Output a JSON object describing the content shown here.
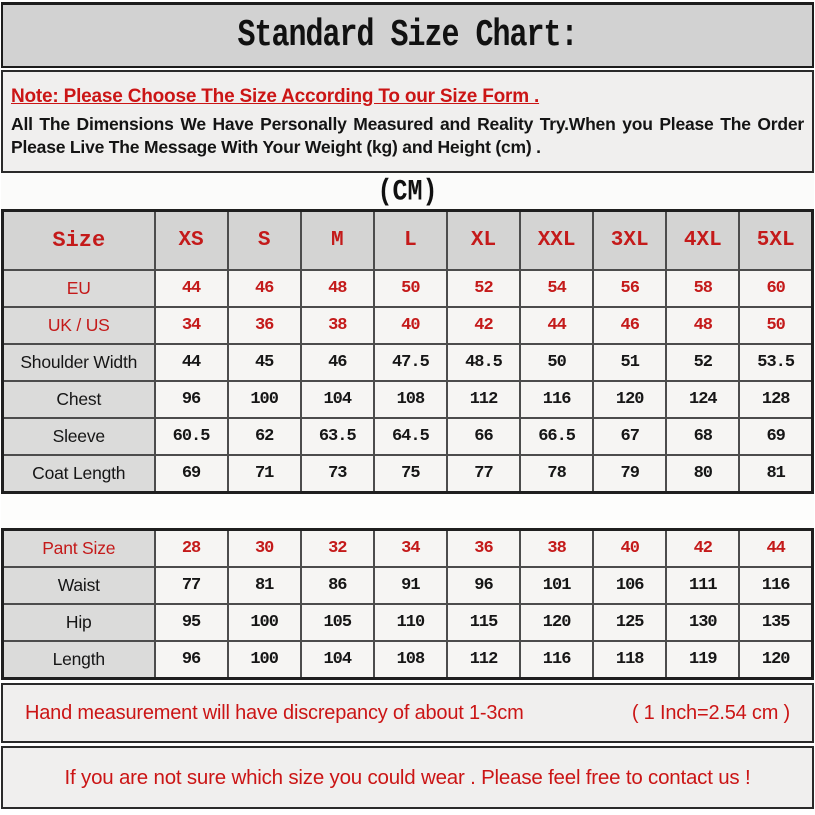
{
  "page": {
    "title": "Standard Size Chart:",
    "unit_label": "(CM)"
  },
  "note": {
    "headline": "Note: Please Choose The Size According To our Size Form .",
    "body_line1": "All The Dimensions We Have Personally Measured and Reality Try.When you Please The Order",
    "body_line2": "Please Live The Message With Your Weight (kg) and Height (cm) ."
  },
  "chart_data": {
    "type": "table",
    "title": "Standard Size Chart (CM)",
    "columns": [
      "Size",
      "XS",
      "S",
      "M",
      "L",
      "XL",
      "XXL",
      "3XL",
      "4XL",
      "5XL"
    ],
    "jacket_rows": [
      {
        "label": "EU",
        "emphasis": "red",
        "values": [
          "44",
          "46",
          "48",
          "50",
          "52",
          "54",
          "56",
          "58",
          "60"
        ]
      },
      {
        "label": "UK / US",
        "emphasis": "red",
        "values": [
          "34",
          "36",
          "38",
          "40",
          "42",
          "44",
          "46",
          "48",
          "50"
        ]
      },
      {
        "label": "Shoulder Width",
        "emphasis": "black",
        "values": [
          "44",
          "45",
          "46",
          "47.5",
          "48.5",
          "50",
          "51",
          "52",
          "53.5"
        ]
      },
      {
        "label": "Chest",
        "emphasis": "black",
        "values": [
          "96",
          "100",
          "104",
          "108",
          "112",
          "116",
          "120",
          "124",
          "128"
        ]
      },
      {
        "label": "Sleeve",
        "emphasis": "black",
        "values": [
          "60.5",
          "62",
          "63.5",
          "64.5",
          "66",
          "66.5",
          "67",
          "68",
          "69"
        ]
      },
      {
        "label": "Coat Length",
        "emphasis": "black",
        "values": [
          "69",
          "71",
          "73",
          "75",
          "77",
          "78",
          "79",
          "80",
          "81"
        ]
      }
    ],
    "pant_rows": [
      {
        "label": "Pant Size",
        "emphasis": "red",
        "values": [
          "28",
          "30",
          "32",
          "34",
          "36",
          "38",
          "40",
          "42",
          "44"
        ]
      },
      {
        "label": "Waist",
        "emphasis": "black",
        "values": [
          "77",
          "81",
          "86",
          "91",
          "96",
          "101",
          "106",
          "111",
          "116"
        ]
      },
      {
        "label": "Hip",
        "emphasis": "black",
        "values": [
          "95",
          "100",
          "105",
          "110",
          "115",
          "120",
          "125",
          "130",
          "135"
        ]
      },
      {
        "label": "Length",
        "emphasis": "black",
        "values": [
          "96",
          "100",
          "104",
          "108",
          "112",
          "116",
          "118",
          "119",
          "120"
        ]
      }
    ]
  },
  "footer": {
    "discrepancy_note": "Hand measurement will have discrepancy of about 1-3cm",
    "inch_conversion": "( 1 Inch=2.54 cm )",
    "contact_note": "If you are not sure which size you could wear . Please feel free to contact us !"
  },
  "colors": {
    "accent_red": "#c41a1a",
    "title_band_bg": "#d2d2d2",
    "band_bg": "#f0efee",
    "header_row_bg": "#d4d4d3",
    "label_col_bg": "#dbdbda",
    "data_cell_bg": "#f6f5f3"
  }
}
